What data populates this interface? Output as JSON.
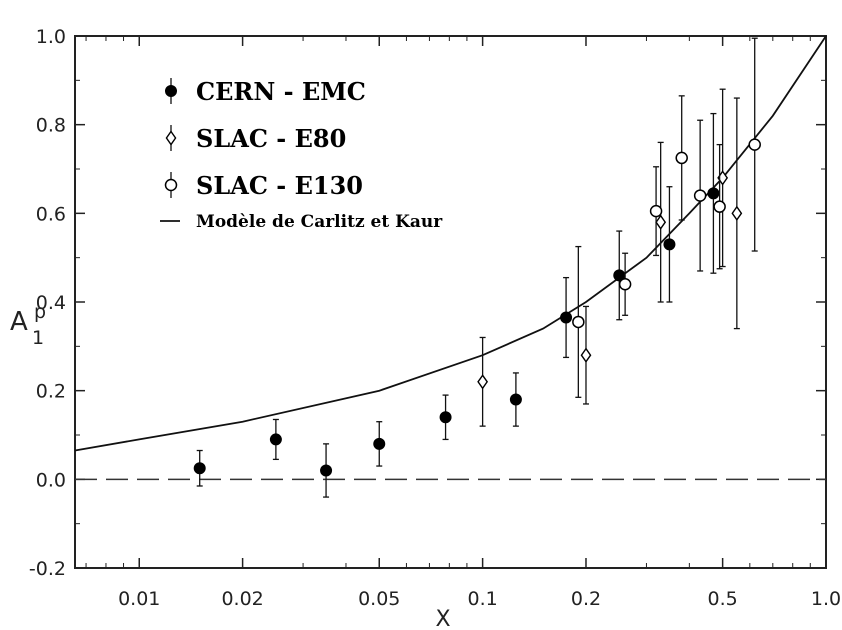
{
  "chart_data": {
    "type": "scatter",
    "title": "",
    "xlabel": "X",
    "ylabel_main": "A",
    "ylabel_sub": "1",
    "ylabel_sup": "p",
    "x_scale": "log",
    "xlim": [
      0.0065,
      1.0
    ],
    "ylim": [
      -0.2,
      1.0
    ],
    "grid": false,
    "legend_position": "top-left",
    "x_ticks": [
      {
        "value": 0.01,
        "label": "0.01"
      },
      {
        "value": 0.02,
        "label": "0.02"
      },
      {
        "value": 0.05,
        "label": "0.05"
      },
      {
        "value": 0.1,
        "label": "0.1"
      },
      {
        "value": 0.2,
        "label": "0.2"
      },
      {
        "value": 0.5,
        "label": "0.5"
      },
      {
        "value": 1.0,
        "label": "1.0"
      }
    ],
    "y_ticks": [
      {
        "value": -0.2,
        "label": "-0.2"
      },
      {
        "value": 0.0,
        "label": "0.0"
      },
      {
        "value": 0.2,
        "label": "0.2"
      },
      {
        "value": 0.4,
        "label": "0.4"
      },
      {
        "value": 0.6,
        "label": "0.6"
      },
      {
        "value": 0.8,
        "label": "0.8"
      },
      {
        "value": 1.0,
        "label": "1.0"
      }
    ],
    "series": [
      {
        "name": "CERN - EMC",
        "marker": "filled-circle",
        "points": [
          {
            "x": 0.015,
            "y": 0.025,
            "err": 0.04
          },
          {
            "x": 0.025,
            "y": 0.09,
            "err": 0.045
          },
          {
            "x": 0.035,
            "y": 0.02,
            "err": 0.06
          },
          {
            "x": 0.05,
            "y": 0.08,
            "err": 0.05
          },
          {
            "x": 0.078,
            "y": 0.14,
            "err": 0.05
          },
          {
            "x": 0.125,
            "y": 0.18,
            "err": 0.06
          },
          {
            "x": 0.175,
            "y": 0.365,
            "err": 0.09
          },
          {
            "x": 0.25,
            "y": 0.46,
            "err": 0.1
          },
          {
            "x": 0.35,
            "y": 0.53,
            "err": 0.13
          },
          {
            "x": 0.47,
            "y": 0.645,
            "err": 0.18
          }
        ]
      },
      {
        "name": "SLAC - E80",
        "marker": "open-diamond",
        "points": [
          {
            "x": 0.1,
            "y": 0.22,
            "err": 0.1
          },
          {
            "x": 0.2,
            "y": 0.28,
            "err": 0.11
          },
          {
            "x": 0.33,
            "y": 0.58,
            "err": 0.18
          },
          {
            "x": 0.5,
            "y": 0.68,
            "err": 0.2
          },
          {
            "x": 0.55,
            "y": 0.6,
            "err": 0.26
          }
        ]
      },
      {
        "name": "SLAC - E130",
        "marker": "open-circle",
        "points": [
          {
            "x": 0.19,
            "y": 0.355,
            "err": 0.17
          },
          {
            "x": 0.26,
            "y": 0.44,
            "err": 0.07
          },
          {
            "x": 0.32,
            "y": 0.605,
            "err": 0.1
          },
          {
            "x": 0.38,
            "y": 0.725,
            "err": 0.14
          },
          {
            "x": 0.43,
            "y": 0.64,
            "err": 0.17
          },
          {
            "x": 0.49,
            "y": 0.615,
            "err": 0.14
          },
          {
            "x": 0.62,
            "y": 0.755,
            "err": 0.24
          }
        ]
      }
    ],
    "model": {
      "name": "Modèle de Carlitz et Kaur",
      "points": [
        {
          "x": 0.0065,
          "y": 0.065
        },
        {
          "x": 0.01,
          "y": 0.09
        },
        {
          "x": 0.02,
          "y": 0.13
        },
        {
          "x": 0.05,
          "y": 0.2
        },
        {
          "x": 0.1,
          "y": 0.28
        },
        {
          "x": 0.15,
          "y": 0.34
        },
        {
          "x": 0.2,
          "y": 0.4
        },
        {
          "x": 0.3,
          "y": 0.5
        },
        {
          "x": 0.4,
          "y": 0.6
        },
        {
          "x": 0.5,
          "y": 0.68
        },
        {
          "x": 0.7,
          "y": 0.82
        },
        {
          "x": 1.0,
          "y": 1.0
        }
      ]
    },
    "reference_line": {
      "y": 0.0,
      "style": "dashed"
    }
  }
}
